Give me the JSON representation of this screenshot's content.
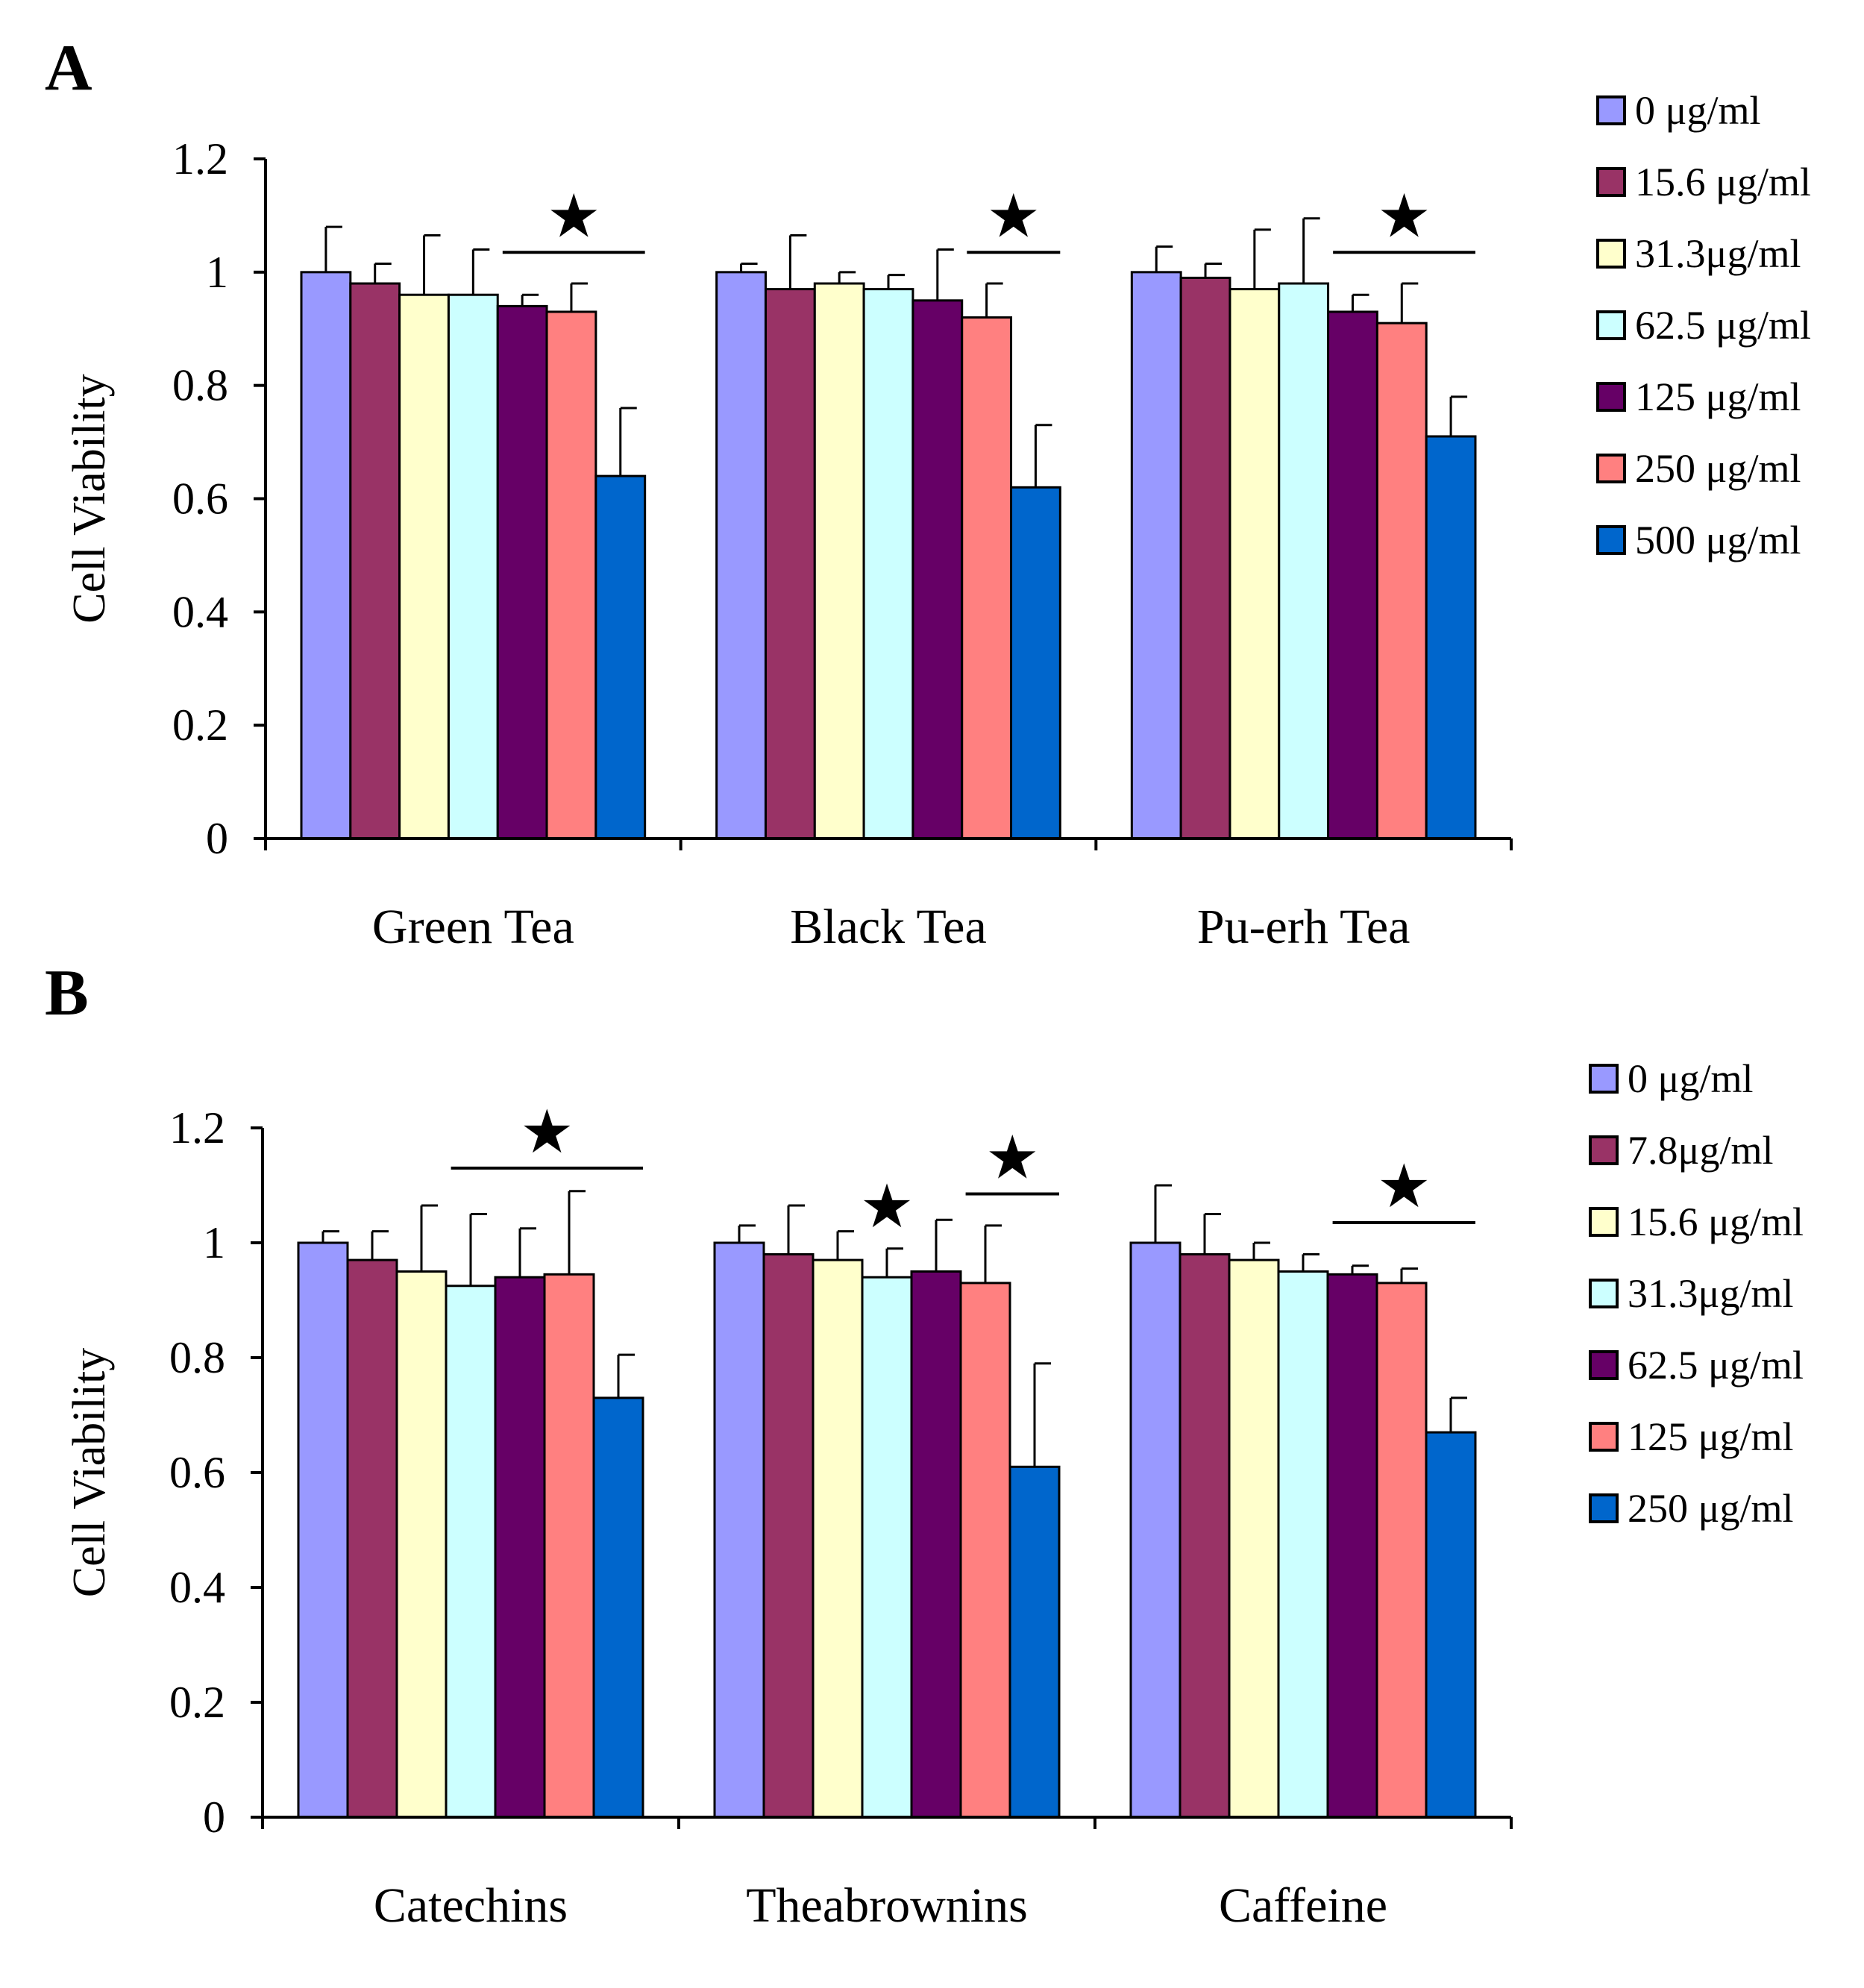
{
  "chart_data": [
    {
      "panel": "A",
      "type": "bar",
      "ylabel": "Cell Viability",
      "xlabel": "",
      "ylim": [
        0,
        1.2
      ],
      "yticks": [
        "0",
        "0.2",
        "0.4",
        "0.6",
        "0.8",
        "1",
        "1.2"
      ],
      "categories": [
        "Green Tea",
        "Black Tea",
        "Pu-erh Tea"
      ],
      "legend_position": "right",
      "series": [
        {
          "name": "0 μg/ml",
          "color": "#9999FF",
          "values": [
            1.0,
            1.0,
            1.0
          ],
          "errors": [
            0.08,
            0.015,
            0.045
          ]
        },
        {
          "name": "15.6 μg/ml",
          "color": "#993366",
          "values": [
            0.98,
            0.97,
            0.99
          ],
          "errors": [
            0.035,
            0.095,
            0.025
          ]
        },
        {
          "name": "31.3μg/ml",
          "color": "#FFFFCC",
          "values": [
            0.96,
            0.98,
            0.97
          ],
          "errors": [
            0.105,
            0.02,
            0.105
          ]
        },
        {
          "name": "62.5 μg/ml",
          "color": "#CCFFFF",
          "values": [
            0.96,
            0.97,
            0.98
          ],
          "errors": [
            0.08,
            0.025,
            0.115
          ]
        },
        {
          "name": "125 μg/ml",
          "color": "#660066",
          "values": [
            0.94,
            0.95,
            0.93
          ],
          "errors": [
            0.02,
            0.09,
            0.03
          ]
        },
        {
          "name": "250 μg/ml",
          "color": "#FF8080",
          "values": [
            0.93,
            0.92,
            0.91
          ],
          "errors": [
            0.05,
            0.06,
            0.07
          ]
        },
        {
          "name": "500 μg/ml",
          "color": "#0066CC",
          "values": [
            0.64,
            0.62,
            0.71
          ],
          "errors": [
            0.12,
            0.11,
            0.07
          ]
        }
      ],
      "annotations": [
        {
          "text": "★",
          "category": 0,
          "from_series": 4,
          "to_series": 6,
          "y": 1.035
        },
        {
          "text": "★",
          "category": 1,
          "from_series": 5,
          "to_series": 6,
          "y": 1.035
        },
        {
          "text": "★",
          "category": 2,
          "from_series": 4,
          "to_series": 6,
          "y": 1.035
        }
      ]
    },
    {
      "panel": "B",
      "type": "bar",
      "ylabel": "Cell Viability",
      "xlabel": "",
      "ylim": [
        0,
        1.2
      ],
      "yticks": [
        "0",
        "0.2",
        "0.4",
        "0.6",
        "0.8",
        "1",
        "1.2"
      ],
      "categories": [
        "Catechins",
        "Theabrownins",
        "Caffeine"
      ],
      "legend_position": "right",
      "series": [
        {
          "name": "0 μg/ml",
          "color": "#9999FF",
          "values": [
            1.0,
            1.0,
            1.0
          ],
          "errors": [
            0.02,
            0.03,
            0.1
          ]
        },
        {
          "name": "7.8μg/ml",
          "color": "#993366",
          "values": [
            0.97,
            0.98,
            0.98
          ],
          "errors": [
            0.05,
            0.085,
            0.07
          ]
        },
        {
          "name": "15.6 μg/ml",
          "color": "#FFFFCC",
          "values": [
            0.95,
            0.97,
            0.97
          ],
          "errors": [
            0.115,
            0.05,
            0.03
          ]
        },
        {
          "name": "31.3μg/ml",
          "color": "#CCFFFF",
          "values": [
            0.925,
            0.94,
            0.95
          ],
          "errors": [
            0.125,
            0.05,
            0.03
          ]
        },
        {
          "name": "62.5 μg/ml",
          "color": "#660066",
          "values": [
            0.94,
            0.95,
            0.945
          ],
          "errors": [
            0.085,
            0.09,
            0.015
          ]
        },
        {
          "name": "125 μg/ml",
          "color": "#FF8080",
          "values": [
            0.945,
            0.93,
            0.93
          ],
          "errors": [
            0.145,
            0.1,
            0.025
          ]
        },
        {
          "name": "250 μg/ml",
          "color": "#0066CC",
          "values": [
            0.73,
            0.61,
            0.67
          ],
          "errors": [
            0.075,
            0.18,
            0.06
          ]
        }
      ],
      "annotations": [
        {
          "text": "★",
          "category": 0,
          "from_series": 3,
          "to_series": 6,
          "y": 1.13
        },
        {
          "text": "★",
          "category": 1,
          "from_series": 3,
          "to_series": 3,
          "y": 1.0
        },
        {
          "text": "★",
          "category": 1,
          "from_series": 5,
          "to_series": 6,
          "y": 1.085
        },
        {
          "text": "★",
          "category": 2,
          "from_series": 4,
          "to_series": 6,
          "y": 1.035
        }
      ]
    }
  ]
}
